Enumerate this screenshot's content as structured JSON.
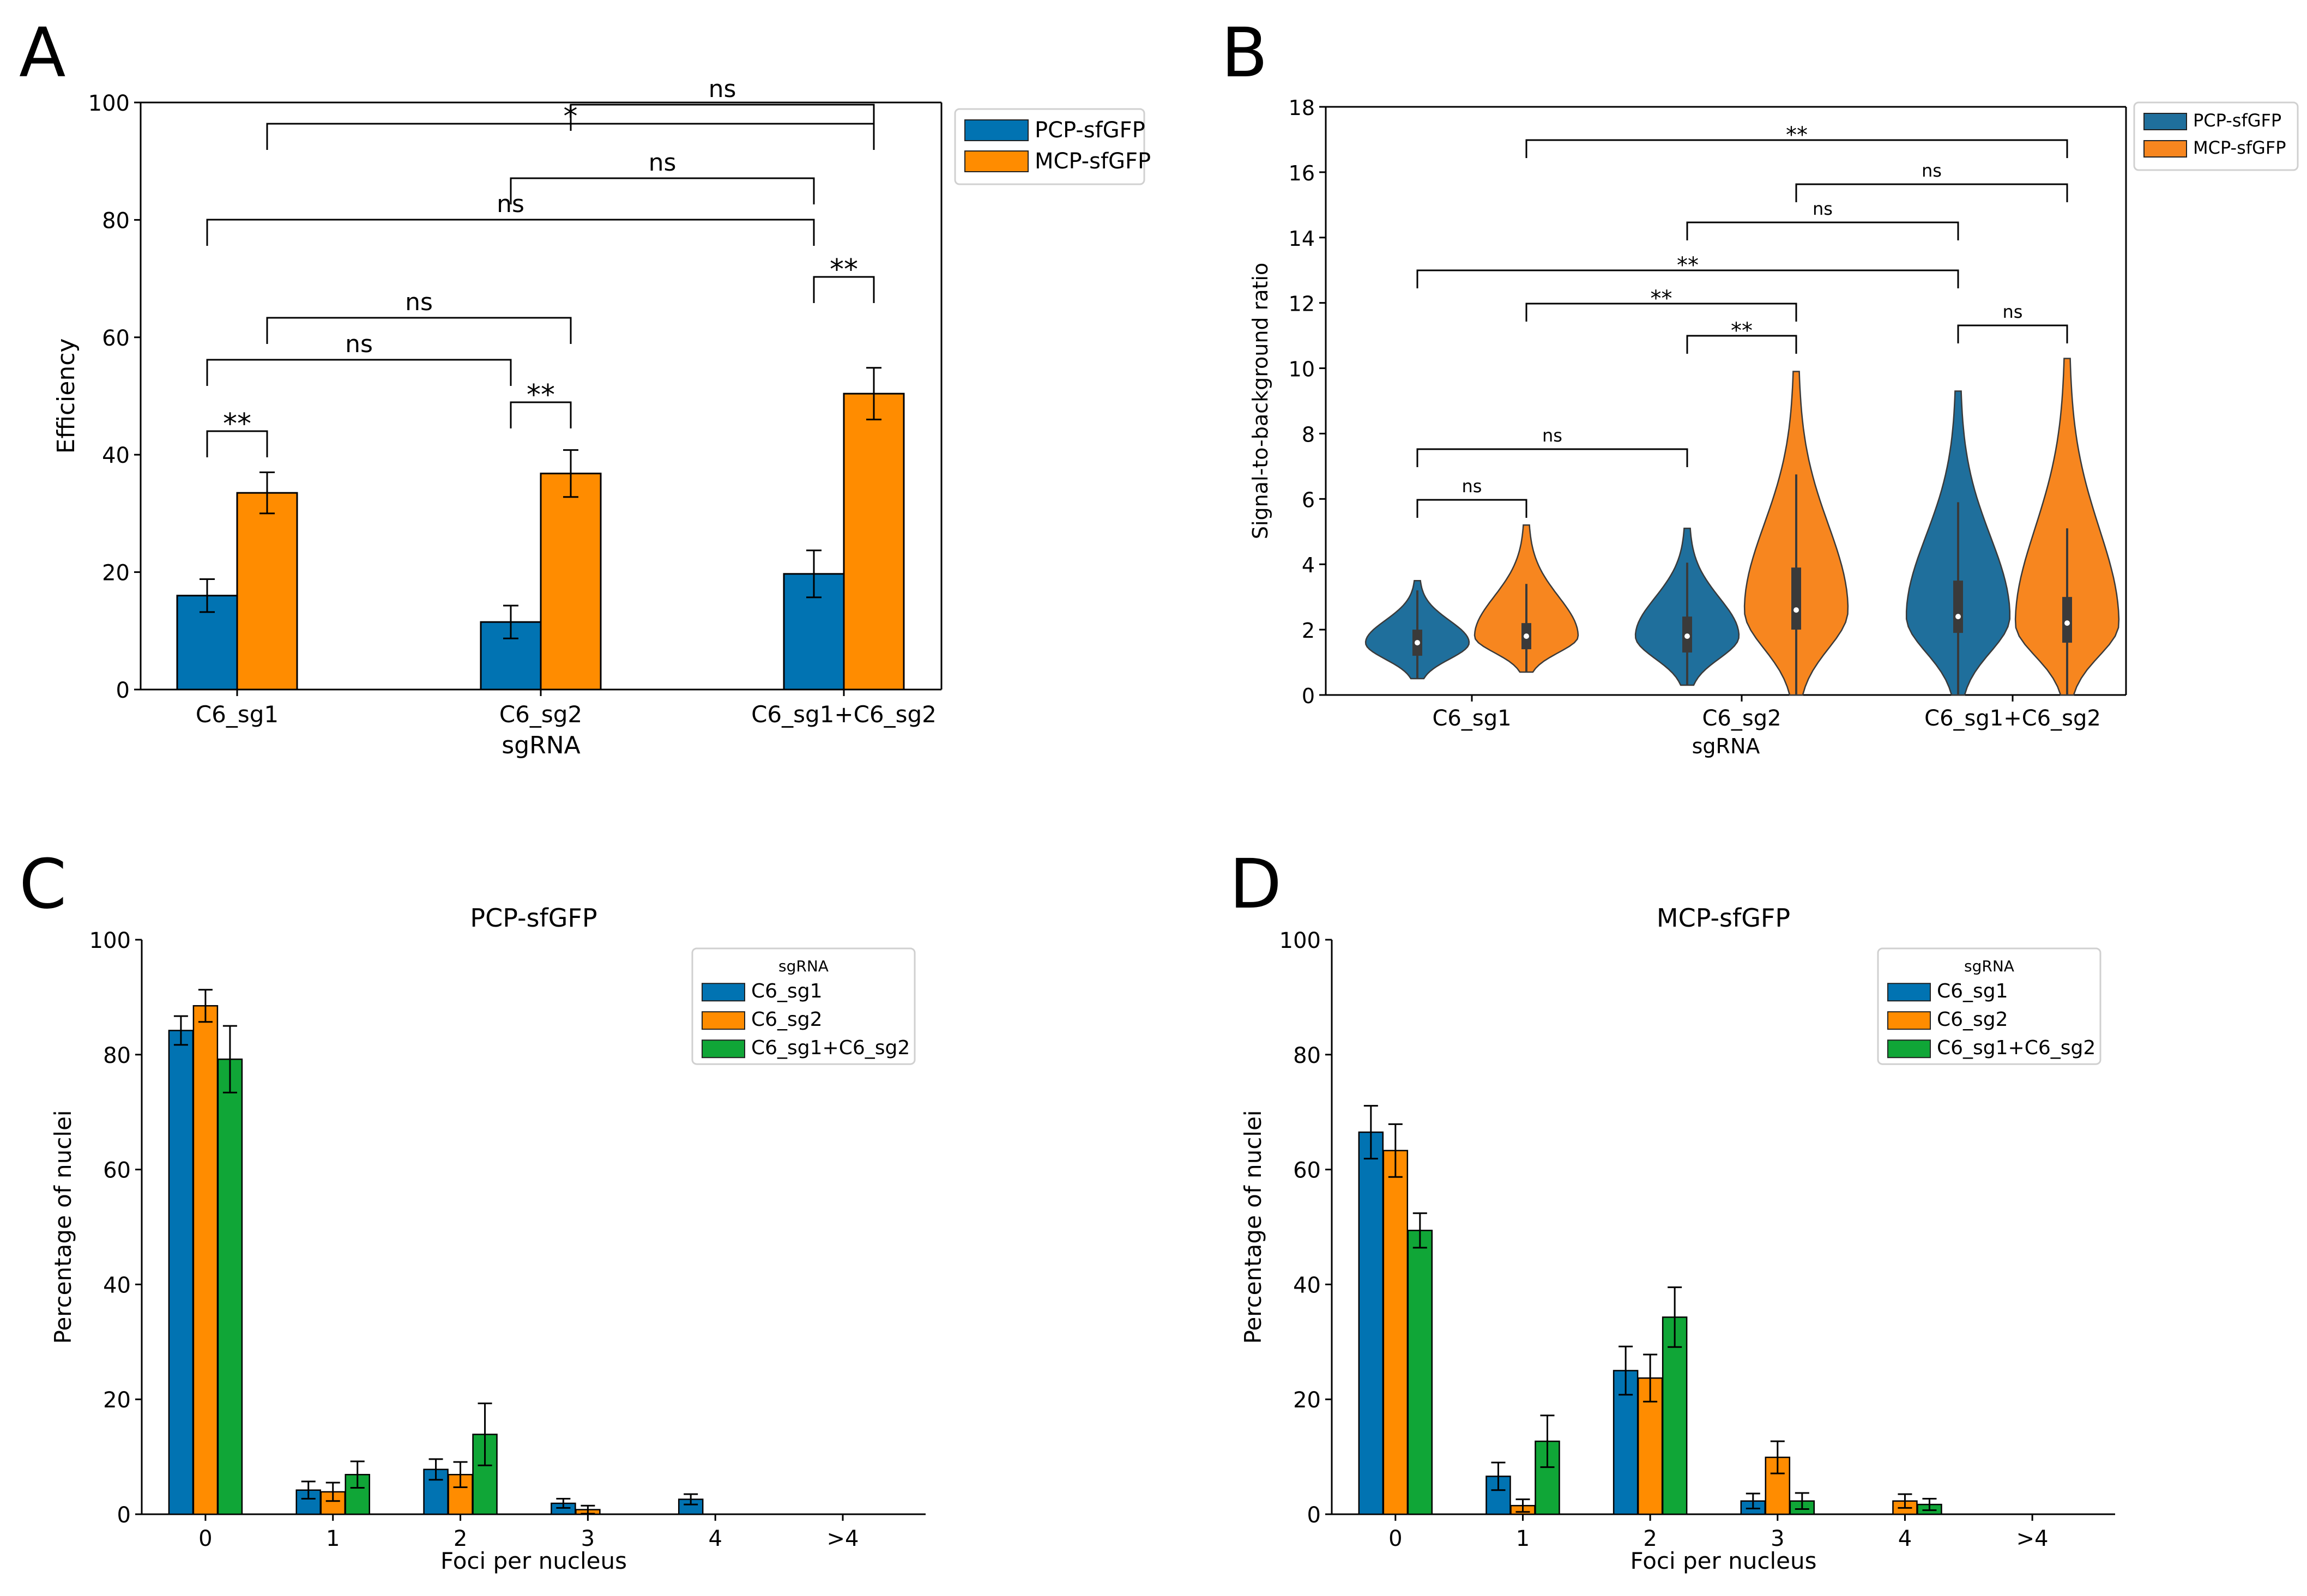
{
  "figure": {
    "colors": {
      "blue": "#0173b2",
      "orange": "#ff8c00",
      "green": "#10a637",
      "violet_blue": "#1f6f9c",
      "violet_orange": "#f7861f"
    }
  },
  "chart_data": [
    {
      "panel": "A",
      "type": "bar",
      "xlabel": "sgRNA",
      "ylabel": "Efficiency",
      "ylim": [
        0,
        100
      ],
      "yticks": [
        0,
        20,
        40,
        60,
        80,
        100
      ],
      "categories": [
        "C6_sg1",
        "C6_sg2",
        "C6_sg1+C6_sg2"
      ],
      "series": [
        {
          "name": "PCP-sfGFP",
          "color": "#0173b2",
          "values": [
            16,
            11.5,
            19.7
          ],
          "errors": [
            2.8,
            2.8,
            4.0
          ]
        },
        {
          "name": "MCP-sfGFP",
          "color": "#ff8c00",
          "values": [
            33.5,
            36.8,
            50.4
          ],
          "errors": [
            3.5,
            4.0,
            4.4
          ]
        }
      ],
      "legend": [
        "PCP-sfGFP",
        "MCP-sfGFP"
      ],
      "legend_location": "outside-top-right",
      "significance": [
        {
          "from": "C6_sg1 PCP-sfGFP",
          "to": "C6_sg1 MCP-sfGFP",
          "label": "**"
        },
        {
          "from": "C6_sg2 PCP-sfGFP",
          "to": "C6_sg2 MCP-sfGFP",
          "label": "**"
        },
        {
          "from": "C6_sg1 PCP-sfGFP",
          "to": "C6_sg2 PCP-sfGFP",
          "label": "ns"
        },
        {
          "from": "C6_sg1 MCP-sfGFP",
          "to": "C6_sg2 MCP-sfGFP",
          "label": "ns"
        },
        {
          "from": "C6_sg1+C6_sg2 PCP-sfGFP",
          "to": "C6_sg1+C6_sg2 MCP-sfGFP",
          "label": "**"
        },
        {
          "from": "C6_sg1 PCP-sfGFP",
          "to": "C6_sg1+C6_sg2 PCP-sfGFP",
          "label": "ns"
        },
        {
          "from": "C6_sg2 PCP-sfGFP",
          "to": "C6_sg1+C6_sg2 PCP-sfGFP",
          "label": "ns"
        },
        {
          "from": "C6_sg1 MCP-sfGFP",
          "to": "C6_sg1+C6_sg2 MCP-sfGFP",
          "label": "*"
        },
        {
          "from": "C6_sg2 MCP-sfGFP",
          "to": "C6_sg1+C6_sg2 MCP-sfGFP",
          "label": "ns"
        }
      ]
    },
    {
      "panel": "B",
      "type": "violin",
      "xlabel": "sgRNA",
      "ylabel": "Signal-to-background ratio",
      "ylim": [
        0,
        18
      ],
      "yticks": [
        0,
        2,
        4,
        6,
        8,
        10,
        12,
        14,
        16,
        18
      ],
      "categories": [
        "C6_sg1",
        "C6_sg2",
        "C6_sg1+C6_sg2"
      ],
      "series": [
        {
          "name": "PCP-sfGFP",
          "color": "#1f6f9c",
          "medians": [
            1.6,
            1.8,
            2.4
          ],
          "q1": [
            1.2,
            1.3,
            1.9
          ],
          "q3": [
            2.0,
            2.4,
            3.5
          ],
          "min": [
            0.5,
            0.3,
            0.0
          ],
          "max": [
            3.5,
            5.1,
            9.3
          ]
        },
        {
          "name": "MCP-sfGFP",
          "color": "#f7861f",
          "medians": [
            1.8,
            2.6,
            2.2
          ],
          "q1": [
            1.4,
            2.0,
            1.6
          ],
          "q3": [
            2.2,
            3.9,
            3.0
          ],
          "min": [
            0.7,
            0.0,
            0.0
          ],
          "max": [
            5.2,
            9.9,
            10.3
          ]
        }
      ],
      "legend": [
        "PCP-sfGFP",
        "MCP-sfGFP"
      ],
      "legend_location": "outside-top-right",
      "significance": [
        {
          "from": "C6_sg1 PCP-sfGFP",
          "to": "C6_sg1 MCP-sfGFP",
          "label": "ns"
        },
        {
          "from": "C6_sg1 PCP-sfGFP",
          "to": "C6_sg2 PCP-sfGFP",
          "label": "ns"
        },
        {
          "from": "C6_sg2 PCP-sfGFP",
          "to": "C6_sg2 MCP-sfGFP",
          "label": "**"
        },
        {
          "from": "C6_sg1+C6_sg2 PCP-sfGFP",
          "to": "C6_sg1+C6_sg2 MCP-sfGFP",
          "label": "ns"
        },
        {
          "from": "C6_sg1 MCP-sfGFP",
          "to": "C6_sg2 MCP-sfGFP",
          "label": "**"
        },
        {
          "from": "C6_sg1 PCP-sfGFP",
          "to": "C6_sg1+C6_sg2 PCP-sfGFP",
          "label": "**"
        },
        {
          "from": "C6_sg2 PCP-sfGFP",
          "to": "C6_sg1+C6_sg2 PCP-sfGFP",
          "label": "ns"
        },
        {
          "from": "C6_sg2 MCP-sfGFP",
          "to": "C6_sg1+C6_sg2 MCP-sfGFP",
          "label": "ns"
        },
        {
          "from": "C6_sg1 MCP-sfGFP",
          "to": "C6_sg1+C6_sg2 MCP-sfGFP",
          "label": "**"
        }
      ]
    },
    {
      "panel": "C",
      "type": "bar",
      "title": "PCP-sfGFP",
      "xlabel": "Foci per nucleus",
      "ylabel": "Percentage of nuclei",
      "ylim": [
        0,
        100
      ],
      "yticks": [
        0,
        20,
        40,
        60,
        80,
        100
      ],
      "categories": [
        "0",
        "1",
        "2",
        "3",
        "4",
        ">4"
      ],
      "legend_title": "sgRNA",
      "legend_location": "upper-right",
      "series": [
        {
          "name": "C6_sg1",
          "color": "#0173b2",
          "values": [
            84.2,
            4.2,
            7.8,
            1.9,
            2.6,
            0
          ],
          "errors": [
            2.5,
            1.5,
            1.8,
            0.8,
            0.9,
            0
          ]
        },
        {
          "name": "C6_sg2",
          "color": "#ff8c00",
          "values": [
            88.5,
            3.9,
            6.9,
            0.8,
            0,
            0
          ],
          "errors": [
            2.8,
            1.6,
            2.2,
            0.7,
            0,
            0
          ]
        },
        {
          "name": "C6_sg1+C6_sg2",
          "color": "#10a637",
          "values": [
            79.2,
            6.9,
            13.9,
            0,
            0,
            0
          ],
          "errors": [
            5.8,
            2.3,
            5.4,
            0,
            0,
            0
          ]
        }
      ]
    },
    {
      "panel": "D",
      "type": "bar",
      "title": "MCP-sfGFP",
      "xlabel": "Foci per nucleus",
      "ylabel": "Percentage of nuclei",
      "ylim": [
        0,
        100
      ],
      "yticks": [
        0,
        20,
        40,
        60,
        80,
        100
      ],
      "categories": [
        "0",
        "1",
        "2",
        "3",
        "4",
        ">4"
      ],
      "legend_title": "sgRNA",
      "legend_location": "upper-right",
      "series": [
        {
          "name": "C6_sg1",
          "color": "#0173b2",
          "values": [
            66.5,
            6.6,
            25.0,
            2.3,
            0,
            0
          ],
          "errors": [
            4.6,
            2.4,
            4.2,
            1.3,
            0,
            0
          ]
        },
        {
          "name": "C6_sg2",
          "color": "#ff8c00",
          "values": [
            63.3,
            1.5,
            23.7,
            9.9,
            2.3,
            0
          ],
          "errors": [
            4.6,
            1.1,
            4.1,
            2.8,
            1.2,
            0
          ]
        },
        {
          "name": "C6_sg1+C6_sg2",
          "color": "#10a637",
          "values": [
            49.4,
            12.7,
            34.3,
            2.3,
            1.7,
            0
          ],
          "errors": [
            3.0,
            4.5,
            5.2,
            1.4,
            1.0,
            0
          ]
        }
      ]
    }
  ]
}
